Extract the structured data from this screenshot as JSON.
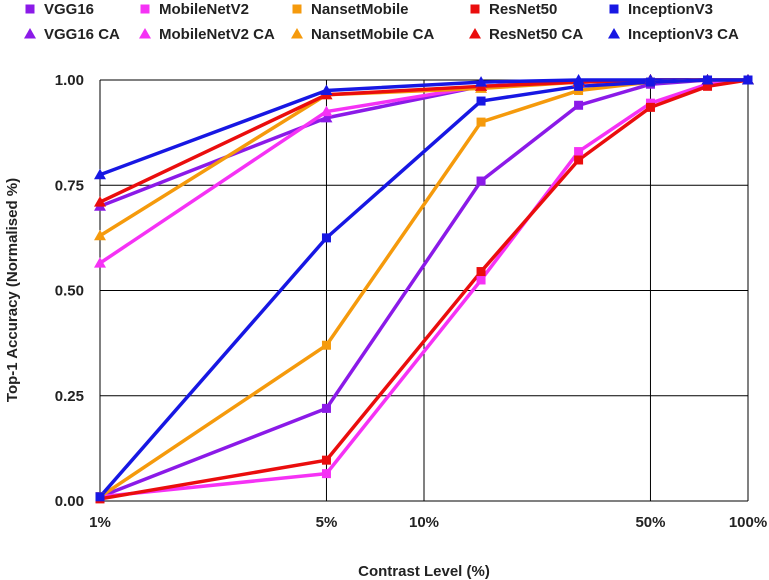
{
  "chart_data": {
    "type": "line",
    "xscale": "log",
    "x": [
      1,
      5,
      15,
      30,
      50,
      75,
      100
    ],
    "x_tick_labels": [
      "1%",
      "5%",
      "10%",
      "50%",
      "100%"
    ],
    "x_tick_values": [
      1,
      5,
      10,
      50,
      100
    ],
    "y_tick_labels": [
      "0.00",
      "0.25",
      "0.50",
      "0.75",
      "1.00"
    ],
    "y_tick_values": [
      0,
      0.25,
      0.5,
      0.75,
      1.0
    ],
    "ylim": [
      0,
      1
    ],
    "xlabel": "Contrast Level (%)",
    "ylabel": "Top-1 Accuracy  (Normalised %)",
    "grid": true,
    "legend_placement": "top",
    "series": [
      {
        "name": "VGG16",
        "color": "#8b1ae8",
        "marker": "square",
        "values": [
          0.01,
          0.22,
          0.76,
          0.94,
          0.99,
          1.0,
          1.0
        ]
      },
      {
        "name": "MobileNetV2",
        "color": "#f532f5",
        "marker": "square",
        "values": [
          0.01,
          0.065,
          0.525,
          0.83,
          0.945,
          0.99,
          1.0
        ]
      },
      {
        "name": "NansetMobile",
        "color": "#f59a0c",
        "marker": "square",
        "values": [
          0.01,
          0.37,
          0.9,
          0.975,
          0.995,
          1.0,
          1.0
        ]
      },
      {
        "name": "ResNet50",
        "color": "#ea0d0d",
        "marker": "square",
        "values": [
          0.005,
          0.097,
          0.545,
          0.81,
          0.935,
          0.985,
          1.0
        ]
      },
      {
        "name": "InceptionV3",
        "color": "#1717e3",
        "marker": "square",
        "values": [
          0.01,
          0.625,
          0.95,
          0.985,
          0.995,
          1.0,
          1.0
        ]
      },
      {
        "name": "VGG16 CA",
        "color": "#8b1ae8",
        "marker": "triangle",
        "values": [
          0.7,
          0.91,
          0.985,
          0.995,
          1.0,
          1.0,
          1.0
        ]
      },
      {
        "name": "MobileNetV2 CA",
        "color": "#f532f5",
        "marker": "triangle",
        "values": [
          0.565,
          0.925,
          0.985,
          0.995,
          1.0,
          1.0,
          1.0
        ]
      },
      {
        "name": "NansetMobile CA",
        "color": "#f59a0c",
        "marker": "triangle",
        "values": [
          0.63,
          0.965,
          0.98,
          0.995,
          1.0,
          1.0,
          1.0
        ]
      },
      {
        "name": "ResNet50 CA",
        "color": "#ea0d0d",
        "marker": "triangle",
        "values": [
          0.71,
          0.965,
          0.985,
          0.995,
          1.0,
          1.0,
          1.0
        ]
      },
      {
        "name": "InceptionV3 CA",
        "color": "#1717e3",
        "marker": "triangle",
        "values": [
          0.775,
          0.975,
          0.995,
          1.0,
          1.0,
          1.0,
          1.0
        ]
      }
    ]
  }
}
